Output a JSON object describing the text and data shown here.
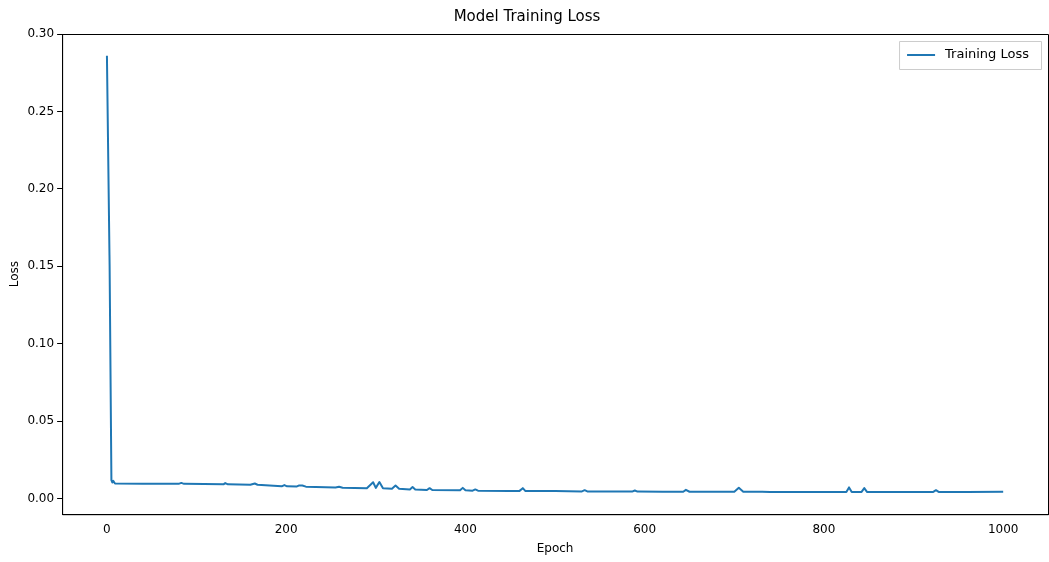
{
  "chart_data": {
    "type": "line",
    "title": "Model Training Loss",
    "xlabel": "Epoch",
    "ylabel": "Loss",
    "xlim": [
      -50,
      1050
    ],
    "xticks": [
      0,
      200,
      400,
      600,
      800,
      1000
    ],
    "ylim": [
      -0.01,
      0.3
    ],
    "yticks": [
      {
        "value": 0,
        "label": "0.00"
      },
      {
        "value": 0.05,
        "label": "0.05"
      },
      {
        "value": 0.1,
        "label": "0.10"
      },
      {
        "value": 0.15,
        "label": "0.15"
      },
      {
        "value": 0.2,
        "label": "0.20"
      },
      {
        "value": 0.25,
        "label": "0.25"
      },
      {
        "value": 0.3,
        "label": "0.30"
      }
    ],
    "grid": false,
    "legend": "top right",
    "marker": "none",
    "line_style": "solid",
    "series": [
      {
        "name": "Training Loss",
        "color": "#1f77b4",
        "x": [
          0,
          3,
          5,
          6,
          7,
          9,
          40,
          80,
          83,
          86,
          130,
          132,
          135,
          160,
          165,
          168,
          195,
          198,
          201,
          212,
          214,
          218,
          222,
          255,
          259,
          263,
          290,
          297,
          300,
          304,
          308,
          318,
          322,
          326,
          338,
          341,
          344,
          357,
          360,
          363,
          394,
          397,
          400,
          408,
          411,
          414,
          460,
          464,
          467,
          500,
          530,
          533,
          536,
          570,
          586,
          589,
          592,
          620,
          643,
          646,
          650,
          660,
          700,
          705,
          710,
          740,
          780,
          825,
          828,
          831,
          842,
          845,
          848,
          880,
          922,
          925,
          928,
          960,
          1000
        ],
        "values": [
          0.286,
          0.15,
          0.012,
          0.0105,
          0.0115,
          0.0098,
          0.0097,
          0.0096,
          0.0102,
          0.0096,
          0.0093,
          0.0101,
          0.0093,
          0.009,
          0.0098,
          0.009,
          0.008,
          0.0088,
          0.008,
          0.0079,
          0.0085,
          0.0085,
          0.0078,
          0.0072,
          0.0077,
          0.0071,
          0.0068,
          0.0106,
          0.007,
          0.0108,
          0.0068,
          0.0065,
          0.0085,
          0.0064,
          0.006,
          0.0075,
          0.006,
          0.0056,
          0.0068,
          0.0056,
          0.0054,
          0.007,
          0.0054,
          0.0052,
          0.006,
          0.0052,
          0.0049,
          0.0068,
          0.0049,
          0.0049,
          0.0047,
          0.0055,
          0.0047,
          0.0047,
          0.0046,
          0.0053,
          0.0046,
          0.0045,
          0.0045,
          0.0057,
          0.0045,
          0.0045,
          0.0045,
          0.007,
          0.0045,
          0.0044,
          0.0044,
          0.0044,
          0.0073,
          0.0044,
          0.0044,
          0.0068,
          0.0044,
          0.0044,
          0.0044,
          0.0055,
          0.0044,
          0.0044,
          0.0045
        ]
      }
    ]
  }
}
